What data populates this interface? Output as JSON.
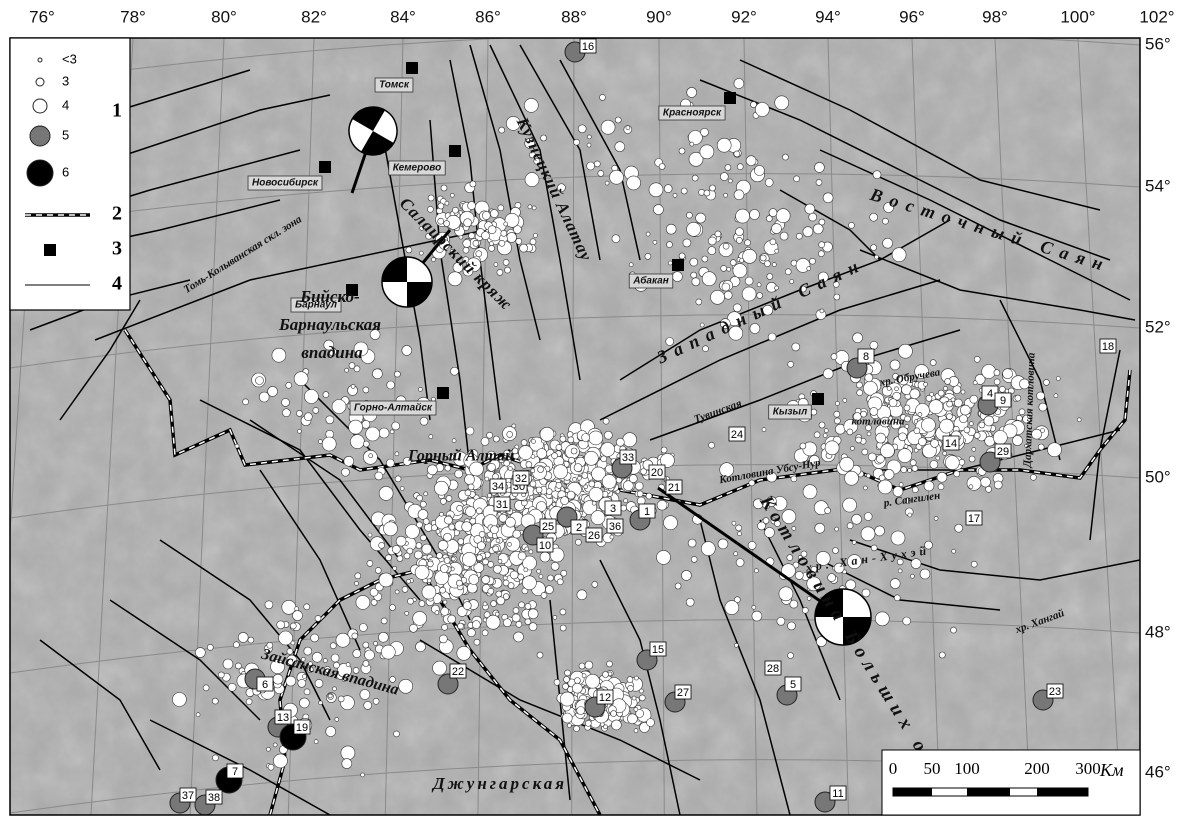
{
  "map": {
    "lon_labels": [
      "76°",
      "78°",
      "80°",
      "82°",
      "84°",
      "86°",
      "88°",
      "90°",
      "92°",
      "94°",
      "96°",
      "98°",
      "100°",
      "102°"
    ],
    "lat_labels": [
      "56°",
      "54°",
      "52°",
      "50°",
      "48°",
      "46°"
    ],
    "legend": {
      "magnitudes": [
        "<3",
        "3",
        "4",
        "5",
        "6"
      ],
      "items": [
        "1",
        "2",
        "3",
        "4"
      ]
    },
    "cities": [
      "Томск",
      "Новосибирск",
      "Кемерово",
      "Красноярск",
      "Абакан",
      "Барнаул",
      "Горно-Алтайск",
      "Кызыл"
    ],
    "regions": [
      "Кузнецкий Алатау",
      "Салаирский кряж",
      "Томь-Колыванская скл. зона",
      "Бийско-",
      "Барнаульская",
      "впадина",
      "Западный Саян",
      "Восточный Саян",
      "Горный Алтай",
      "Тувинская",
      "котловина",
      "Котловина Убсу-Нур",
      "р. Сангилен",
      "хр. Обручева",
      "Дархатская котловина",
      "хр. Хан-Хухэй",
      "Котловина Больших озёр",
      "Зайсанская впадина",
      "Джунгарская",
      "хр. Хангай"
    ],
    "events": [
      "16",
      "8",
      "18",
      "4",
      "9",
      "14",
      "29",
      "24",
      "17",
      "33",
      "20",
      "21",
      "34",
      "30",
      "31",
      "32",
      "3",
      "36",
      "1",
      "2",
      "26",
      "25",
      "10",
      "15",
      "22",
      "12",
      "27",
      "28",
      "5",
      "23",
      "6",
      "13",
      "19",
      "7",
      "37",
      "38",
      "11"
    ],
    "scale": {
      "ticks": [
        "0",
        "50",
        "100",
        "200",
        "300"
      ],
      "unit": "Км"
    }
  }
}
